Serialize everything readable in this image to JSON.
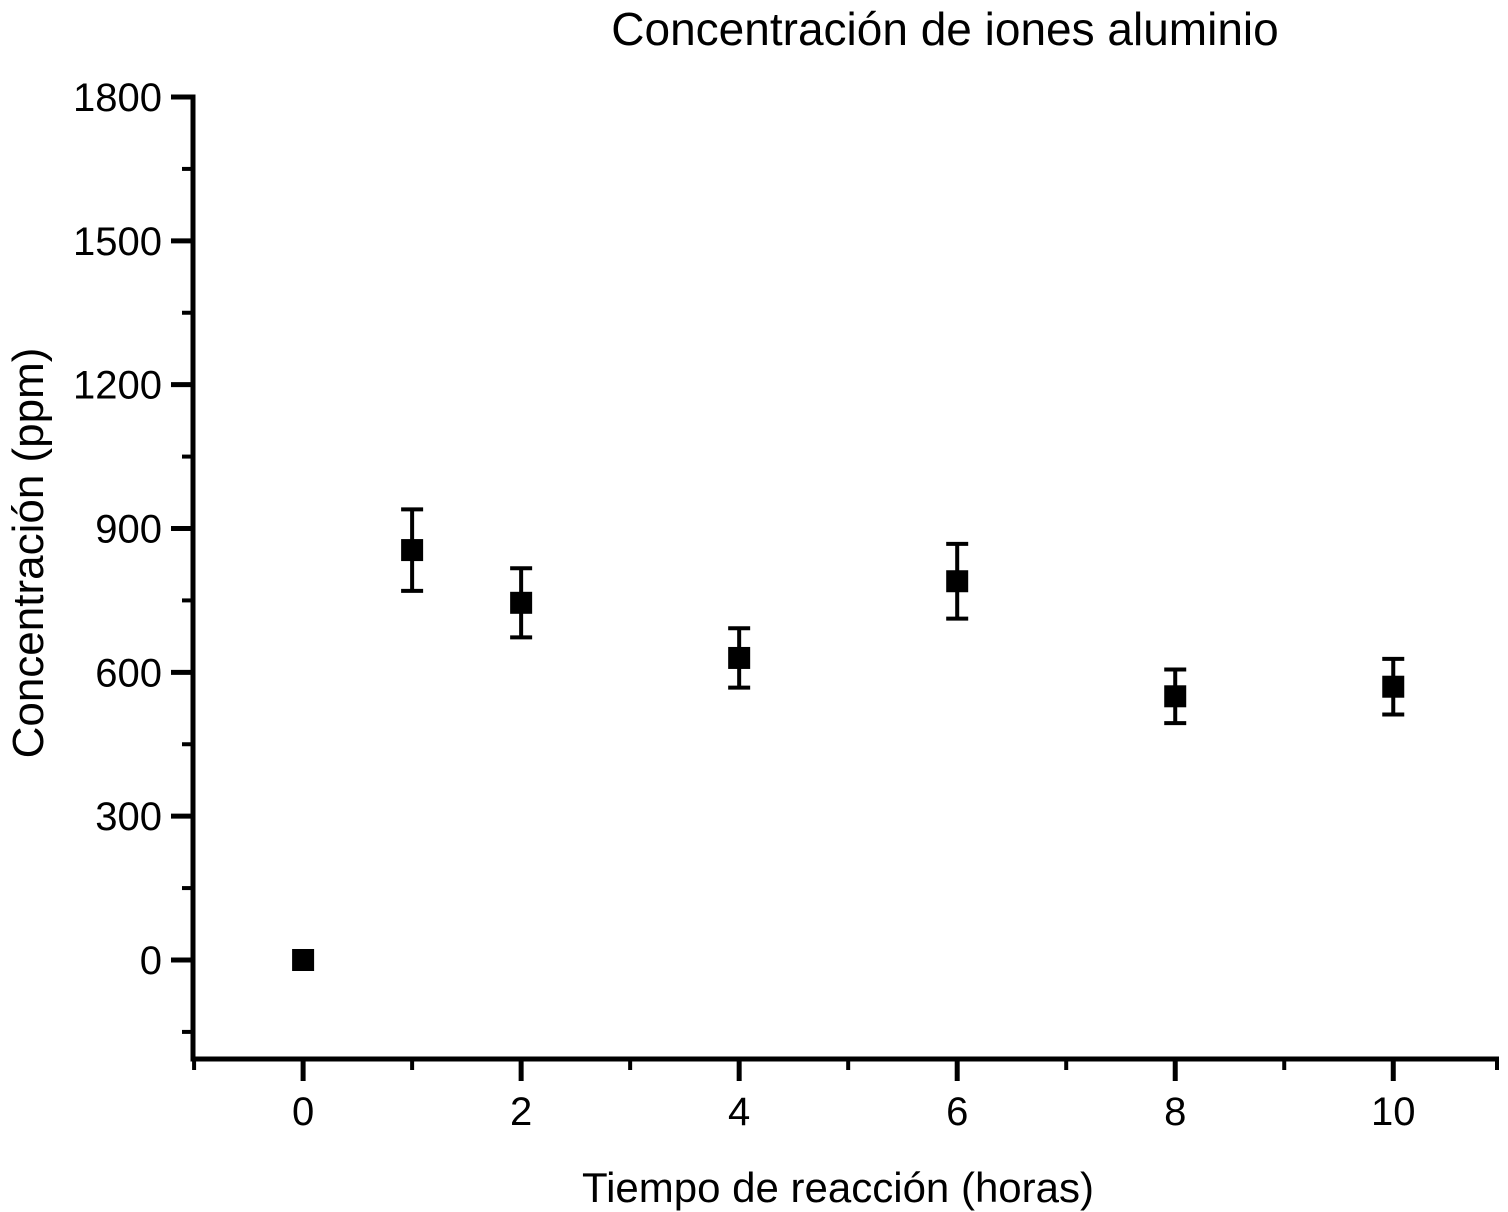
{
  "chart_data": {
    "type": "scatter",
    "title": "Concentración de iones aluminio",
    "xlabel": "Tiempo de reacción (horas)",
    "ylabel": "Concentración (ppm)",
    "series": [
      {
        "name": "Concentración de iones aluminio",
        "x": [
          0,
          1,
          2,
          4,
          6,
          8,
          10
        ],
        "y": [
          0,
          855,
          745,
          630,
          790,
          550,
          570
        ],
        "yerr": [
          0,
          85,
          72,
          62,
          78,
          56,
          58
        ]
      }
    ],
    "marker": "filled-square",
    "marker_color": "#000000",
    "error_bar_color": "#000000",
    "axis_color": "#000000",
    "background_color": "#ffffff",
    "x_ticks": [
      0,
      2,
      4,
      6,
      8,
      10
    ],
    "x_minor_ticks": [
      -1,
      1,
      3,
      5,
      7,
      9,
      11
    ],
    "y_ticks": [
      0,
      300,
      600,
      900,
      1200,
      1500,
      1800
    ],
    "y_minor_ticks": [
      -150,
      150,
      450,
      750,
      1050,
      1350,
      1650
    ],
    "xlim": [
      -1.01,
      10.97
    ],
    "ylim": [
      -206.5,
      1800
    ],
    "grid": false,
    "legend": "none"
  }
}
